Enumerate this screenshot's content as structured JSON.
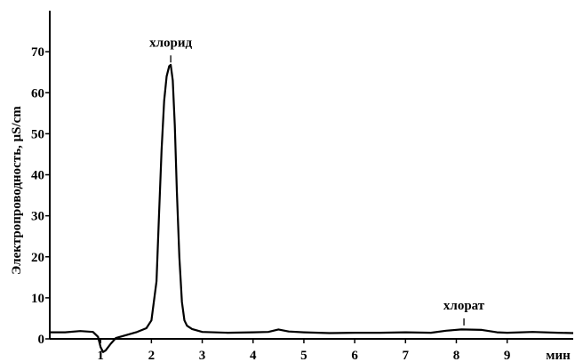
{
  "chart_data": {
    "type": "line",
    "title": "",
    "xlabel": "мин",
    "ylabel": "Электропроводность, μS/cm",
    "xlim": [
      0,
      10.3
    ],
    "ylim": [
      0,
      80
    ],
    "x_ticks": [
      1,
      2,
      3,
      4,
      5,
      6,
      7,
      8,
      9
    ],
    "y_ticks": [
      0,
      10,
      20,
      30,
      40,
      50,
      60,
      70
    ],
    "grid": false,
    "legend": "none",
    "colors": {
      "line": "#000000",
      "background": "#ffffff"
    },
    "annotations": [
      {
        "text": "хлорид",
        "x": 2.38,
        "y": 66.5
      },
      {
        "text": "хлорат",
        "x": 8.15,
        "y": 2.4
      }
    ],
    "series": [
      {
        "x": [
          0,
          0.3,
          0.6,
          0.85,
          0.95,
          1.0,
          1.05,
          1.1,
          1.2,
          1.3,
          1.5,
          1.7,
          1.9,
          2.0,
          2.1,
          2.15,
          2.2,
          2.25,
          2.3,
          2.35,
          2.38,
          2.42,
          2.46,
          2.5,
          2.55,
          2.6,
          2.65,
          2.7,
          2.8,
          3.0,
          3.5,
          4.0,
          4.3,
          4.5,
          4.7,
          5.0,
          5.5,
          6.0,
          6.5,
          7.0,
          7.5,
          7.8,
          8.1,
          8.5,
          8.8,
          9.0,
          9.5,
          10.0,
          10.3
        ],
        "y": [
          1.6,
          1.6,
          1.9,
          1.7,
          0.5,
          -2.0,
          -3.2,
          -2.8,
          -1.2,
          0.2,
          0.9,
          1.6,
          2.6,
          4.5,
          14,
          30,
          46,
          58,
          64,
          66.5,
          66.8,
          63,
          52,
          36,
          20,
          9,
          4.5,
          3.2,
          2.4,
          1.7,
          1.5,
          1.6,
          1.7,
          2.3,
          1.8,
          1.6,
          1.4,
          1.5,
          1.5,
          1.6,
          1.5,
          2.0,
          2.3,
          2.2,
          1.6,
          1.5,
          1.7,
          1.5,
          1.4
        ]
      }
    ]
  }
}
